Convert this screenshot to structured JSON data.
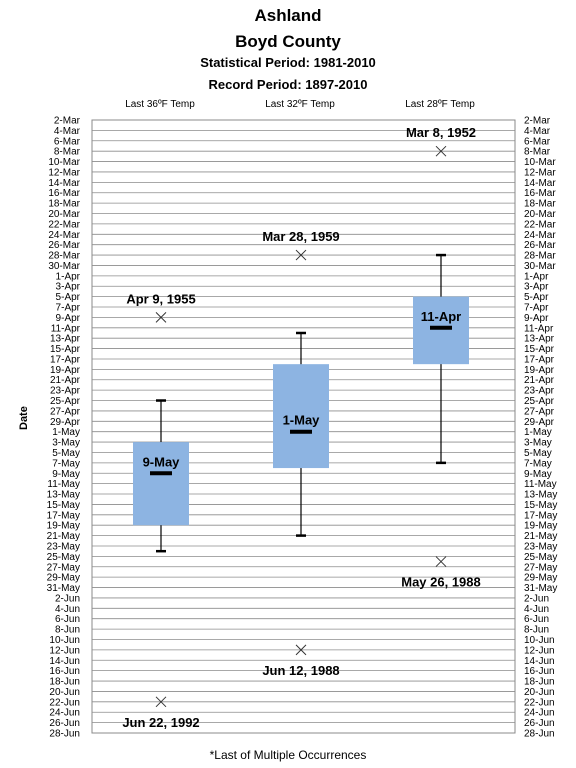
{
  "titles": {
    "line1": "Ashland",
    "line2": "Boyd County",
    "line3": "Statistical Period: 1981-2010",
    "line4": "Record Period: 1897-2010"
  },
  "footnote": "*Last of Multiple Occurrences",
  "chart_data": {
    "type": "box",
    "ylabel": "Date",
    "categories": [
      "Last 36ºF Temp",
      "Last 32ºF Temp",
      "Last 28ºF Temp"
    ],
    "y_ticks": [
      "2-Mar",
      "4-Mar",
      "6-Mar",
      "8-Mar",
      "10-Mar",
      "12-Mar",
      "14-Mar",
      "16-Mar",
      "18-Mar",
      "20-Mar",
      "22-Mar",
      "24-Mar",
      "26-Mar",
      "28-Mar",
      "30-Mar",
      "1-Apr",
      "3-Apr",
      "5-Apr",
      "7-Apr",
      "9-Apr",
      "11-Apr",
      "13-Apr",
      "15-Apr",
      "17-Apr",
      "19-Apr",
      "21-Apr",
      "23-Apr",
      "25-Apr",
      "27-Apr",
      "29-Apr",
      "1-May",
      "3-May",
      "5-May",
      "7-May",
      "9-May",
      "11-May",
      "13-May",
      "15-May",
      "17-May",
      "19-May",
      "21-May",
      "23-May",
      "25-May",
      "27-May",
      "29-May",
      "31-May",
      "2-Jun",
      "4-Jun",
      "6-Jun",
      "8-Jun",
      "10-Jun",
      "12-Jun",
      "14-Jun",
      "16-Jun",
      "18-Jun",
      "20-Jun",
      "22-Jun",
      "24-Jun",
      "26-Jun",
      "28-Jun"
    ],
    "y_axis_inverted": true,
    "grid": true,
    "series": [
      {
        "category": "Last 36ºF Temp",
        "whisker_low": "25-Apr",
        "box_low": "3-May",
        "median": "9-May",
        "median_label": "9-May",
        "box_high": "19-May",
        "whisker_high": "24-May",
        "record": "22-Jun",
        "record_label": "Jun 22, 1992",
        "outlier": "9-Apr",
        "outlier_label": "Apr 9, 1955"
      },
      {
        "category": "Last 32ºF Temp",
        "whisker_low": "12-Apr",
        "box_low": "18-Apr",
        "median": "1-May",
        "median_label": "1-May",
        "box_high": "8-May",
        "whisker_high": "21-May",
        "record": "12-Jun",
        "record_label": "Jun 12, 1988",
        "outlier": "28-Mar",
        "outlier_label": "Mar 28, 1959"
      },
      {
        "category": "Last 28ºF Temp",
        "whisker_low": "28-Mar",
        "box_low": "5-Apr",
        "median": "11-Apr",
        "median_label": "11-Apr",
        "box_high": "18-Apr",
        "whisker_high": "7-May",
        "record": "26-May",
        "record_label": "May 26, 1988",
        "outlier": "8-Mar",
        "outlier_label": "Mar 8, 1952"
      }
    ]
  }
}
